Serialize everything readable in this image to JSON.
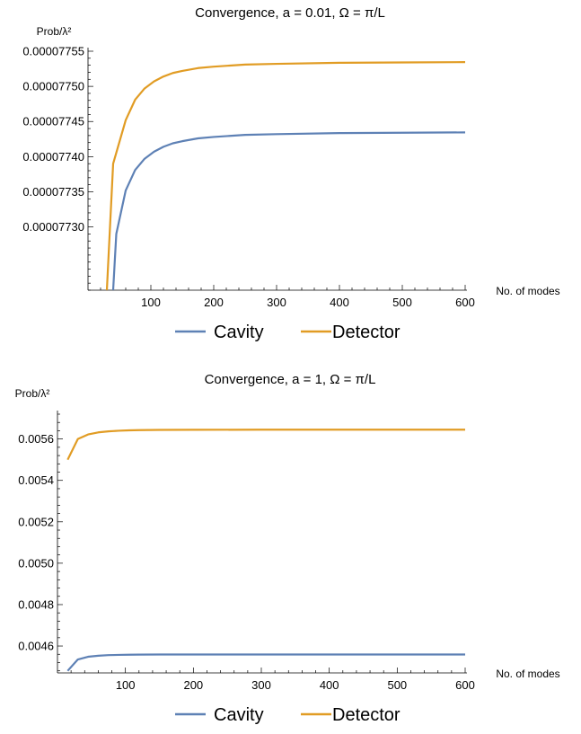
{
  "chart_data": [
    {
      "type": "line",
      "title": "Convergence, a = 0.01, Ω = π/L",
      "ylabel": "Prob/λ²",
      "xlabel": "No. of modes",
      "xlim": [
        0,
        600
      ],
      "ylim": [
        7.721e-05,
        7.755e-05
      ],
      "x_ticks": [
        100,
        200,
        300,
        400,
        500,
        600
      ],
      "y_ticks": [
        7.73e-05,
        7.735e-05,
        7.74e-05,
        7.745e-05,
        7.75e-05,
        7.755e-05
      ],
      "y_tick_labels": [
        "0.00007730",
        "0.00007735",
        "0.00007740",
        "0.00007745",
        "0.00007750",
        "0.00007755"
      ],
      "grid": false,
      "legend_position": "bottom",
      "series": [
        {
          "name": "Cavity",
          "color": "#5E81B5",
          "x": [
            40,
            45,
            60,
            75,
            90,
            105,
            120,
            135,
            150,
            175,
            200,
            250,
            300,
            400,
            500,
            600
          ],
          "y": [
            7.721e-05,
            7.729e-05,
            7.7352e-05,
            7.7381e-05,
            7.7397e-05,
            7.7407e-05,
            7.7414e-05,
            7.7419e-05,
            7.7422e-05,
            7.7426e-05,
            7.7428e-05,
            7.7431e-05,
            7.7432e-05,
            7.74335e-05,
            7.7434e-05,
            7.74345e-05
          ]
        },
        {
          "name": "Detector",
          "color": "#E19C24",
          "x": [
            30,
            40,
            60,
            75,
            90,
            105,
            120,
            135,
            150,
            175,
            200,
            250,
            300,
            400,
            500,
            600
          ],
          "y": [
            7.721e-05,
            7.739e-05,
            7.7452e-05,
            7.7481e-05,
            7.7497e-05,
            7.7507e-05,
            7.7514e-05,
            7.7519e-05,
            7.7522e-05,
            7.7526e-05,
            7.7528e-05,
            7.7531e-05,
            7.7532e-05,
            7.75335e-05,
            7.7534e-05,
            7.75345e-05
          ]
        }
      ]
    },
    {
      "type": "line",
      "title": "Convergence, a = 1, Ω = π/L",
      "ylabel": "Prob/λ²",
      "xlabel": "No. of modes",
      "xlim": [
        0,
        600
      ],
      "ylim": [
        0.00447,
        0.00572
      ],
      "x_ticks": [
        100,
        200,
        300,
        400,
        500,
        600
      ],
      "y_ticks": [
        0.0046,
        0.0048,
        0.005,
        0.0052,
        0.0054,
        0.0056
      ],
      "y_tick_labels": [
        "0.0046",
        "0.0048",
        "0.0050",
        "0.0052",
        "0.0054",
        "0.0056"
      ],
      "grid": false,
      "legend_position": "bottom",
      "series": [
        {
          "name": "Cavity",
          "color": "#5E81B5",
          "x": [
            15,
            30,
            45,
            60,
            75,
            90,
            105,
            120,
            150,
            200,
            300,
            400,
            500,
            600
          ],
          "y": [
            0.00448,
            0.004535,
            0.004548,
            0.004553,
            0.004556,
            0.004557,
            0.004558,
            0.0045585,
            0.004559,
            0.004559,
            0.004559,
            0.004559,
            0.004559,
            0.004559
          ]
        },
        {
          "name": "Detector",
          "color": "#E19C24",
          "x": [
            15,
            30,
            45,
            60,
            75,
            90,
            105,
            120,
            150,
            200,
            300,
            400,
            500,
            600
          ],
          "y": [
            0.0055,
            0.0056,
            0.005622,
            0.005632,
            0.005637,
            0.00564,
            0.005642,
            0.005643,
            0.005644,
            0.0056445,
            0.005645,
            0.005645,
            0.005645,
            0.005645
          ]
        }
      ]
    }
  ]
}
